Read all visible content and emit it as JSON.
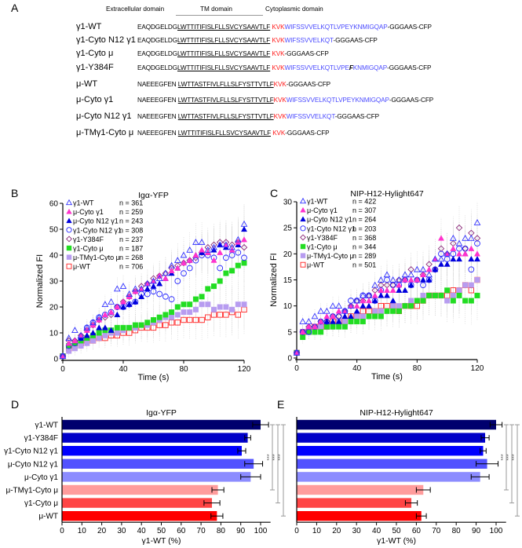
{
  "panel_labels": {
    "A": "A",
    "B": "B",
    "C": "C",
    "D": "D",
    "E": "E"
  },
  "panel_a": {
    "header": {
      "extracellular": "Extracellular domain",
      "tm": "TM domain",
      "cytoplasmic": "Cytoplasmic domain"
    },
    "constructs": [
      {
        "name": "γ1-WT",
        "segments": [
          {
            "text": "EAQDGELDG",
            "type": "plain"
          },
          {
            "text": "LWTTITIFISLFLLSVCYSAAVTLF",
            "type": "tm"
          },
          {
            "text": " ",
            "type": "plain"
          },
          {
            "text": "KVK",
            "type": "kvk"
          },
          {
            "text": "WIFSSVVELKQTLVPEYKNMIGQAP",
            "type": "cyto"
          },
          {
            "text": "-GGGAAS-CFP",
            "type": "plain"
          }
        ]
      },
      {
        "name": "γ1-Cyto N12 γ1",
        "segments": [
          {
            "text": "EAQDGELDG",
            "type": "plain"
          },
          {
            "text": "LWTTITIFISLFLLSVCYSAAVTLF",
            "type": "tm"
          },
          {
            "text": " ",
            "type": "plain"
          },
          {
            "text": "KVK",
            "type": "kvk"
          },
          {
            "text": "WIFSSVVELKQT",
            "type": "cyto"
          },
          {
            "text": "-GGGAAS-CFP",
            "type": "plain"
          }
        ]
      },
      {
        "name": "γ1-Cyto μ",
        "segments": [
          {
            "text": "EAQDGELDG",
            "type": "plain"
          },
          {
            "text": "LWTTITIFISLFLLSVCYSAAVTLF",
            "type": "tm"
          },
          {
            "text": " ",
            "type": "plain"
          },
          {
            "text": "KVK",
            "type": "kvk"
          },
          {
            "text": "-GGGAAS-CFP",
            "type": "plain"
          }
        ]
      },
      {
        "name": "γ1-Y384F",
        "segments": [
          {
            "text": "EAQDGELDG",
            "type": "plain"
          },
          {
            "text": "LWTTITIFISLFLLSVCYSAAVTLF",
            "type": "tm"
          },
          {
            "text": " ",
            "type": "plain"
          },
          {
            "text": "KVK",
            "type": "kvk"
          },
          {
            "text": "WIFSSVVELKQTLVPE",
            "type": "cyto"
          },
          {
            "text": "F",
            "type": "mut"
          },
          {
            "text": "KNMIGQAP",
            "type": "cyto"
          },
          {
            "text": "-GGGAAS-CFP",
            "type": "plain"
          }
        ]
      },
      {
        "name": "μ-WT",
        "segments": [
          {
            "text": "NAEEEGFEN ",
            "type": "plain"
          },
          {
            "text": "LWTTASTFIVLFLLSLFYSTTVTLF",
            "type": "tm"
          },
          {
            "text": "KVK",
            "type": "kvk"
          },
          {
            "text": "-GGGAAS-CFP",
            "type": "plain"
          }
        ]
      },
      {
        "name": "μ-Cyto γ1",
        "segments": [
          {
            "text": "NAEEEGFEN ",
            "type": "plain"
          },
          {
            "text": "LWTTASTFIVLFLLSLFYSTTVTLF",
            "type": "tm"
          },
          {
            "text": "KVK",
            "type": "kvk"
          },
          {
            "text": "WIFSSVVELKQTLVPEYKNMIGQAP",
            "type": "cyto"
          },
          {
            "text": "-GGGAAS-CFP",
            "type": "plain"
          }
        ]
      },
      {
        "name": "μ-Cyto N12 γ1",
        "segments": [
          {
            "text": "NAEEEGFEN ",
            "type": "plain"
          },
          {
            "text": "LWTTASTFIVLFLLSLFYSTTVTLF",
            "type": "tm"
          },
          {
            "text": "KVK",
            "type": "kvk"
          },
          {
            "text": "WIFSSVVELKQT",
            "type": "cyto"
          },
          {
            "text": "-GGGAAS-CFP",
            "type": "plain"
          }
        ]
      },
      {
        "name": "μ-TMγ1-Cyto μ",
        "segments": [
          {
            "text": "NAEEEGFEN ",
            "type": "plain"
          },
          {
            "text": "LWTTITIFISLFLLSVCYSAAVTLF",
            "type": "tm"
          },
          {
            "text": " ",
            "type": "plain"
          },
          {
            "text": "KVK",
            "type": "kvk"
          },
          {
            "text": "-GGGAAS-CFP",
            "type": "plain"
          }
        ]
      }
    ]
  },
  "colors": {
    "kvk": "#ff1a1a",
    "cyto": "#4a4aff",
    "gamma1_wt": "#3333ff",
    "mu_cyto_g1": "#ff33cc",
    "mu_cyto_n12": "#0000dd",
    "g1_cyto_n12": "#2222ff",
    "y384f": "#8b2a7a",
    "g1_cyto_mu": "#22dd22",
    "mu_tm": "#b79cf0",
    "mu_wt": "#ff2222",
    "bars": [
      "#00006e",
      "#0000c8",
      "#0000ff",
      "#5252ff",
      "#8c8cff",
      "#ff9c9c",
      "#ff4545",
      "#ff0000"
    ],
    "bracket": "#999999"
  },
  "chart_data": [
    {
      "panel": "B",
      "type": "scatter",
      "title": "Igα-YFP",
      "xlabel": "Time (s)",
      "ylabel": "Normalized FI",
      "xlim": [
        0,
        120
      ],
      "ylim": [
        0,
        60
      ],
      "xticks": [
        0,
        40,
        80,
        120
      ],
      "yticks": [
        0,
        10,
        20,
        30,
        40,
        50,
        60
      ],
      "legend": "top-left",
      "x": [
        0,
        4,
        8,
        12,
        16,
        20,
        24,
        28,
        32,
        36,
        40,
        44,
        48,
        52,
        56,
        60,
        64,
        68,
        72,
        76,
        80,
        84,
        88,
        92,
        96,
        100,
        104,
        108,
        112,
        116,
        120
      ],
      "series": [
        {
          "name": "γ1-WT",
          "n": "n = 361",
          "marker": "triangle-open",
          "color": "#3333ff",
          "values": [
            1,
            8,
            11,
            9,
            12,
            14,
            16,
            21,
            22,
            27,
            28,
            25,
            27,
            27,
            29,
            30,
            31,
            33,
            36,
            38,
            40,
            42,
            45,
            45,
            42,
            43,
            44,
            44,
            43,
            46,
            52
          ]
        },
        {
          "name": "μ-Cyto γ1",
          "n": "n = 259",
          "marker": "triangle-filled",
          "color": "#ff33cc",
          "values": [
            1,
            6,
            7,
            9,
            11,
            13,
            15,
            17,
            18,
            20,
            22,
            24,
            26,
            27,
            29,
            30,
            32,
            31,
            34,
            35,
            37,
            38,
            40,
            42,
            41,
            38,
            41,
            44,
            42,
            45,
            46
          ]
        },
        {
          "name": "μ-Cyto N12 γ1",
          "n": "n = 243",
          "marker": "triangle-filled",
          "color": "#0000dd",
          "values": [
            1,
            6,
            7,
            8,
            9,
            10,
            12,
            12,
            11,
            17,
            20,
            21,
            22,
            24,
            27,
            28,
            29,
            31,
            33,
            35,
            37,
            38,
            40,
            41,
            41,
            42,
            44,
            43,
            42,
            44,
            50
          ]
        },
        {
          "name": "γ1-Cyto N12 γ1",
          "n": "n = 308",
          "marker": "circle-open",
          "color": "#2222ff",
          "values": [
            1,
            5,
            6,
            8,
            12,
            14,
            16,
            17,
            18,
            20,
            20,
            21,
            22,
            25,
            25,
            26,
            25,
            24,
            23,
            30,
            33,
            35,
            38,
            40,
            40,
            39,
            35,
            39,
            40,
            41,
            39
          ]
        },
        {
          "name": "γ1-Y384F",
          "n": "n = 237",
          "marker": "diamond-open",
          "color": "#8b2a7a",
          "values": [
            1,
            7,
            7,
            9,
            11,
            13,
            15,
            16,
            17,
            20,
            22,
            24,
            26,
            28,
            29,
            31,
            32,
            33,
            35,
            36,
            37,
            38,
            39,
            41,
            43,
            44,
            45,
            45,
            44,
            45,
            43
          ]
        },
        {
          "name": "γ1-Cyto μ",
          "n": "n = 187",
          "marker": "square-filled",
          "color": "#22dd22",
          "values": [
            1,
            5,
            6,
            7,
            8,
            9,
            10,
            11,
            11,
            12,
            12,
            12,
            13,
            13,
            14,
            15,
            16,
            17,
            18,
            20,
            21,
            21,
            23,
            24,
            27,
            28,
            30,
            33,
            34,
            36,
            37
          ]
        },
        {
          "name": "μ-TMγ1-Cyto μ",
          "n": "n = 268",
          "marker": "square-filled",
          "color": "#b79cf0",
          "values": [
            1,
            3,
            4,
            5,
            6,
            7,
            8,
            9,
            10,
            10,
            11,
            12,
            12,
            13,
            13,
            14,
            15,
            16,
            16,
            17,
            18,
            18,
            19,
            21,
            21,
            19,
            20,
            20,
            19,
            21,
            21
          ]
        },
        {
          "name": "μ-WT",
          "n": "n = 706",
          "marker": "square-open",
          "color": "#ff2222",
          "values": [
            1,
            4,
            5,
            6,
            7,
            7,
            8,
            8,
            9,
            9,
            10,
            10,
            11,
            12,
            12,
            12,
            13,
            13,
            14,
            14,
            15,
            15,
            15,
            15,
            16,
            17,
            17,
            17,
            18,
            17,
            19
          ]
        }
      ]
    },
    {
      "panel": "C",
      "type": "scatter",
      "title": "NIP-H12-Hylight647",
      "xlabel": "Time (s)",
      "ylabel": "Normalized FI",
      "xlim": [
        0,
        120
      ],
      "ylim": [
        0,
        30
      ],
      "xticks": [
        0,
        40,
        80,
        120
      ],
      "yticks": [
        0,
        5,
        10,
        15,
        20,
        25,
        30
      ],
      "legend": "top-left",
      "x": [
        0,
        4,
        8,
        12,
        16,
        20,
        24,
        28,
        32,
        36,
        40,
        44,
        48,
        52,
        56,
        60,
        64,
        68,
        72,
        76,
        80,
        84,
        88,
        92,
        96,
        100,
        104,
        108,
        112,
        116,
        120
      ],
      "series": [
        {
          "name": "γ1-WT",
          "n": "n = 422",
          "marker": "triangle-open",
          "color": "#3333ff",
          "values": [
            1,
            7,
            7,
            8,
            9,
            9,
            10,
            10,
            9,
            10,
            11,
            12,
            12,
            14,
            15,
            16,
            15,
            15,
            16,
            16,
            17,
            17,
            16,
            19,
            19,
            20,
            23,
            22,
            23,
            23,
            26
          ]
        },
        {
          "name": "μ-Cyto γ1",
          "n": "n = 307",
          "marker": "triangle-filled",
          "color": "#ff33cc",
          "values": [
            1,
            5,
            6,
            6,
            7,
            8,
            8,
            9,
            9,
            10,
            10,
            11,
            11,
            12,
            13,
            13,
            13,
            14,
            15,
            15,
            15,
            16,
            17,
            19,
            23,
            20,
            21,
            20,
            20,
            21,
            20
          ]
        },
        {
          "name": "μ-Cyto N12 γ1",
          "n": "n = 264",
          "marker": "triangle-filled",
          "color": "#0000dd",
          "values": [
            1,
            5,
            6,
            6,
            7,
            7,
            7,
            7,
            8,
            8,
            9,
            10,
            10,
            11,
            12,
            12,
            11,
            13,
            13,
            14,
            15,
            15,
            15,
            17,
            18,
            18,
            19,
            19,
            20,
            19,
            19
          ]
        },
        {
          "name": "γ1-Cyto N12 γ1",
          "n": "n = 203",
          "marker": "circle-open",
          "color": "#2222ff",
          "values": [
            1,
            5,
            5,
            6,
            7,
            7,
            8,
            8,
            9,
            11,
            11,
            12,
            12,
            11,
            13,
            15,
            14,
            14,
            15,
            14,
            15,
            14,
            15,
            17,
            20,
            19,
            20,
            21,
            21,
            17,
            22
          ]
        },
        {
          "name": "γ1-Y384F",
          "n": "n = 368",
          "marker": "diamond-open",
          "color": "#8b2a7a",
          "values": [
            1,
            5,
            6,
            6,
            7,
            7,
            8,
            8,
            9,
            10,
            11,
            11,
            12,
            13,
            14,
            14,
            14,
            15,
            15,
            17,
            15,
            16,
            18,
            17,
            21,
            20,
            22,
            25,
            21,
            24,
            23
          ]
        },
        {
          "name": "γ1-Cyto μ",
          "n": "n = 344",
          "marker": "square-filled",
          "color": "#22dd22",
          "values": [
            1,
            4,
            5,
            5,
            5,
            6,
            6,
            6,
            6,
            7,
            7,
            7,
            8,
            8,
            8,
            9,
            9,
            9,
            10,
            10,
            11,
            11,
            12,
            12,
            12,
            13,
            11,
            12,
            11,
            11,
            12
          ]
        },
        {
          "name": "μ-TMγ1-Cyto μ",
          "n": "n = 289",
          "marker": "square-filled",
          "color": "#b79cf0",
          "values": [
            1,
            5,
            5,
            5,
            6,
            6,
            6,
            7,
            7,
            7,
            8,
            8,
            8,
            9,
            9,
            9,
            10,
            10,
            10,
            11,
            11,
            12,
            12,
            12,
            12,
            11,
            12,
            13,
            14,
            14,
            15
          ]
        },
        {
          "name": "μ-WT",
          "n": "n = 501",
          "marker": "square-open",
          "color": "#ff2222",
          "values": [
            1,
            5,
            5,
            6,
            6,
            6,
            7,
            7,
            7,
            8,
            8,
            9,
            9,
            9,
            10,
            10,
            10,
            9,
            10,
            10,
            10,
            11,
            12,
            12,
            12,
            12,
            13,
            13,
            14,
            13,
            15
          ]
        }
      ]
    },
    {
      "panel": "D",
      "type": "bar",
      "orientation": "horizontal",
      "title": "Igα-YFP",
      "xlabel": "γ1-WT (%)",
      "xlim": [
        0,
        105
      ],
      "xticks": [
        0,
        10,
        20,
        30,
        40,
        50,
        60,
        70,
        80,
        90,
        100
      ],
      "categories": [
        "γ1-WT",
        "γ1-Y384F",
        "γ1-Cyto N12 γ1",
        "μ-Cyto N12 γ1",
        "μ-Cyto γ1",
        "μ-TMγ1-Cyto μ",
        "γ1-Cyto μ",
        "μ-WT"
      ],
      "values": [
        100,
        93.5,
        90.5,
        96.5,
        95,
        78.5,
        75.5,
        78
      ],
      "errors": [
        4,
        1.5,
        2,
        4.5,
        5,
        3,
        4,
        3
      ],
      "significance": [
        {
          "from": "γ1-WT",
          "to": "μ-TMγ1-Cyto μ",
          "label": "***"
        },
        {
          "from": "γ1-WT",
          "to": "γ1-Cyto μ",
          "label": "***"
        },
        {
          "from": "γ1-WT",
          "to": "μ-WT",
          "label": "***"
        }
      ]
    },
    {
      "panel": "E",
      "type": "bar",
      "orientation": "horizontal",
      "title": "NIP-H12-Hylight647",
      "xlabel": "γ1-WT (%)",
      "xlim": [
        0,
        105
      ],
      "xticks": [
        0,
        10,
        20,
        30,
        40,
        50,
        60,
        70,
        80,
        90,
        100
      ],
      "categories": [
        "γ1-WT",
        "γ1-Y384F",
        "γ1-Cyto N12 γ1",
        "μ-Cyto N12 γ1",
        "μ-Cyto γ1",
        "μ-TMγ1-Cyto μ",
        "γ1-Cyto μ",
        "μ-WT"
      ],
      "values": [
        100,
        94.5,
        93.5,
        95.5,
        92,
        63.5,
        57.5,
        62.5
      ],
      "errors": [
        3,
        2,
        1.5,
        5.5,
        4.5,
        3.5,
        3,
        2.5
      ],
      "significance": [
        {
          "from": "γ1-WT",
          "to": "μ-TMγ1-Cyto μ",
          "label": "***"
        },
        {
          "from": "γ1-WT",
          "to": "γ1-Cyto μ",
          "label": "***"
        },
        {
          "from": "γ1-WT",
          "to": "μ-WT",
          "label": "***"
        }
      ]
    }
  ]
}
